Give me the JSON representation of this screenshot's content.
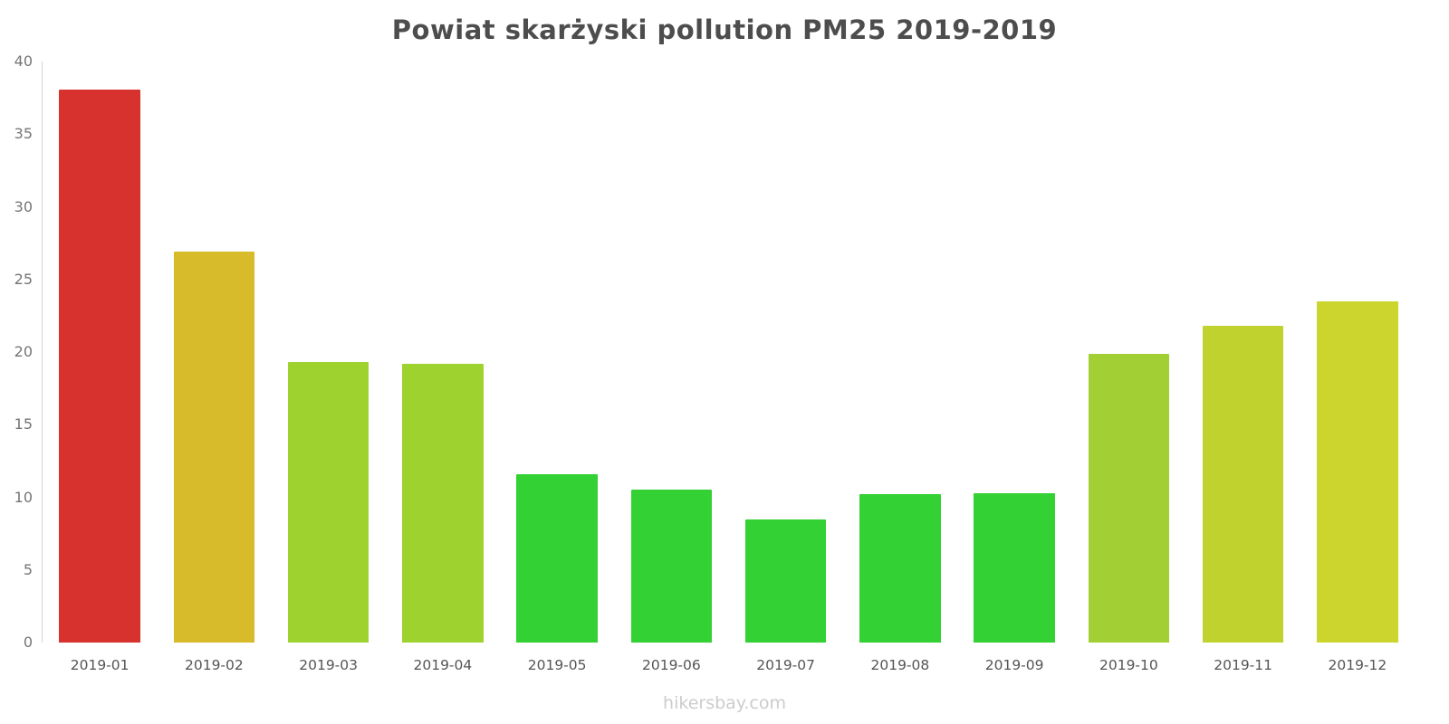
{
  "title": "Powiat skarżyski pollution PM25 2019-2019",
  "footer": "hikersbay.com",
  "chart_data": {
    "type": "bar",
    "title": "Powiat skarżyski pollution PM25 2019-2019",
    "categories": [
      "2019-01",
      "2019-02",
      "2019-03",
      "2019-04",
      "2019-05",
      "2019-06",
      "2019-07",
      "2019-08",
      "2019-09",
      "2019-10",
      "2019-11",
      "2019-12"
    ],
    "values": [
      38.1,
      26.9,
      19.3,
      19.2,
      11.6,
      10.5,
      8.5,
      10.2,
      10.3,
      19.9,
      21.8,
      23.5
    ],
    "colors": [
      "#d8322f",
      "#d7bb2a",
      "#9ed32f",
      "#9ed32f",
      "#33d133",
      "#33d133",
      "#33d133",
      "#33d133",
      "#33d133",
      "#a2cf33",
      "#c0d22e",
      "#ccd52d"
    ],
    "xlabel": "",
    "ylabel": "",
    "ylim": [
      0,
      40
    ],
    "yticks": [
      0,
      5,
      10,
      15,
      20,
      25,
      30,
      35,
      40
    ],
    "grid": false,
    "legend": "none"
  }
}
